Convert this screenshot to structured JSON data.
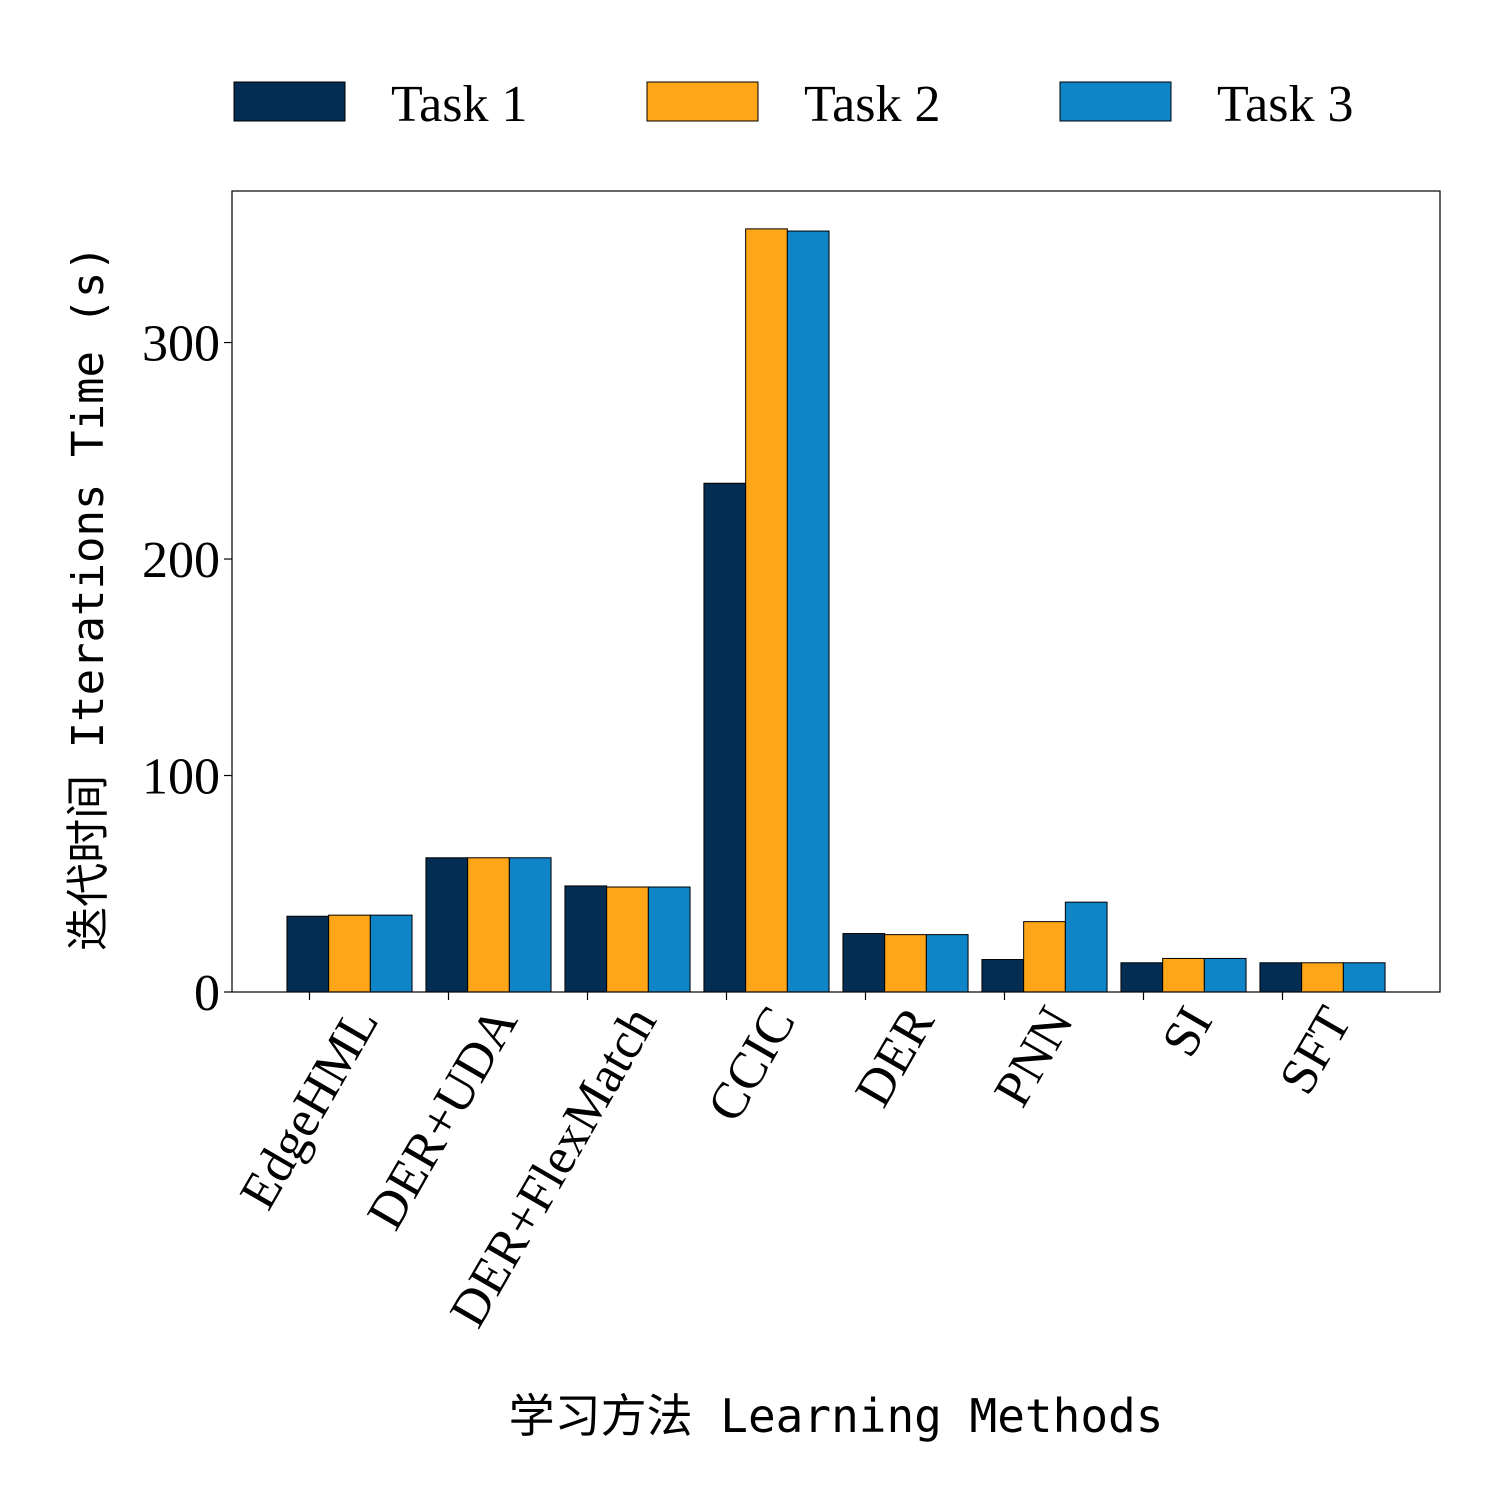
{
  "chart_data": {
    "type": "bar",
    "xlabel": "学习方法 Learning Methods",
    "ylabel": "迭代时间 Iterations Time (s)",
    "categories": [
      "EdgeHML",
      "DER+UDA",
      "DER+FlexMatch",
      "CCIC",
      "DER",
      "PNN",
      "SI",
      "SFT"
    ],
    "series": [
      {
        "name": "Task 1",
        "color": "#032d52",
        "values": [
          35,
          62,
          49,
          235,
          27,
          15,
          13.5,
          13.5
        ]
      },
      {
        "name": "Task 2",
        "color": "#fea518",
        "values": [
          35.5,
          62,
          48.5,
          352.5,
          26.5,
          32.5,
          15.5,
          13.5
        ]
      },
      {
        "name": "Task 3",
        "color": "#0f84c7",
        "values": [
          35.5,
          62,
          48.5,
          351.5,
          26.5,
          41.5,
          15.5,
          13.5
        ]
      }
    ],
    "ylim": [
      0,
      370
    ],
    "yticks": [
      0,
      100,
      200,
      300
    ],
    "grid": false,
    "legend_position": "top-center"
  }
}
